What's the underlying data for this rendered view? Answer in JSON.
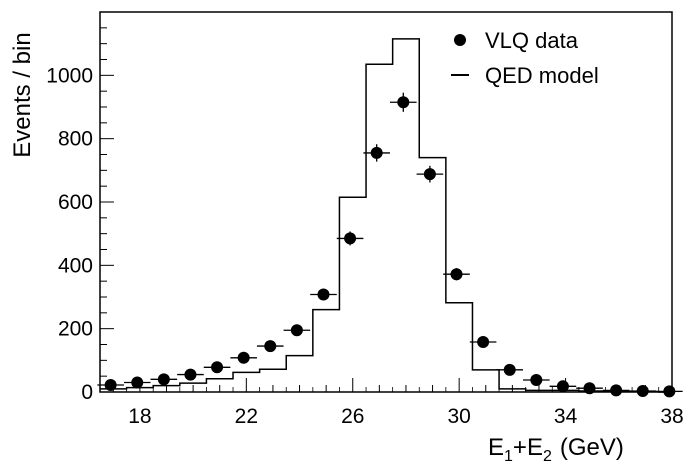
{
  "chart_data": {
    "type": "scatter",
    "title": "",
    "xlabel_main": "E",
    "xlabel_sub1": "1",
    "xlabel_plus": "+E",
    "xlabel_sub2": "2",
    "xlabel_unit": "(GeV)",
    "ylabel": "Events / bin",
    "xlim": [
      16.5,
      38
    ],
    "ylim": [
      0,
      1200
    ],
    "x_ticks": [
      18,
      22,
      26,
      30,
      34,
      38
    ],
    "y_ticks": [
      0,
      200,
      400,
      600,
      800,
      1000
    ],
    "grid": false,
    "legend_position": "top-right",
    "legend": [
      "VLQ data",
      "QED model"
    ],
    "bin_width": 1,
    "series": [
      {
        "name": "VLQ data",
        "style": "points",
        "color": "#000000",
        "x": [
          16.9,
          17.9,
          18.9,
          19.9,
          20.9,
          21.9,
          22.9,
          23.9,
          24.9,
          25.9,
          26.9,
          27.9,
          28.9,
          29.9,
          30.9,
          31.9,
          32.9,
          33.9,
          34.9,
          35.9,
          36.9,
          37.9
        ],
        "y": [
          22,
          30,
          40,
          55,
          78,
          108,
          145,
          195,
          308,
          485,
          755,
          915,
          688,
          372,
          158,
          70,
          38,
          18,
          12,
          5,
          3,
          2
        ]
      },
      {
        "name": "QED model",
        "style": "step",
        "color": "#000000",
        "edges": [
          16.5,
          17.5,
          18.5,
          19.5,
          20.5,
          21.5,
          22.5,
          23.5,
          24.5,
          25.5,
          26.5,
          27.5,
          28.5,
          29.5,
          30.5,
          31.5,
          32.5,
          33.5,
          34.5,
          35.5,
          36.5,
          37.5,
          38
        ],
        "y": [
          10,
          14,
          20,
          28,
          42,
          62,
          72,
          115,
          260,
          615,
          1035,
          1115,
          740,
          282,
          70,
          10,
          5,
          5,
          3,
          2,
          1,
          0
        ]
      }
    ]
  }
}
